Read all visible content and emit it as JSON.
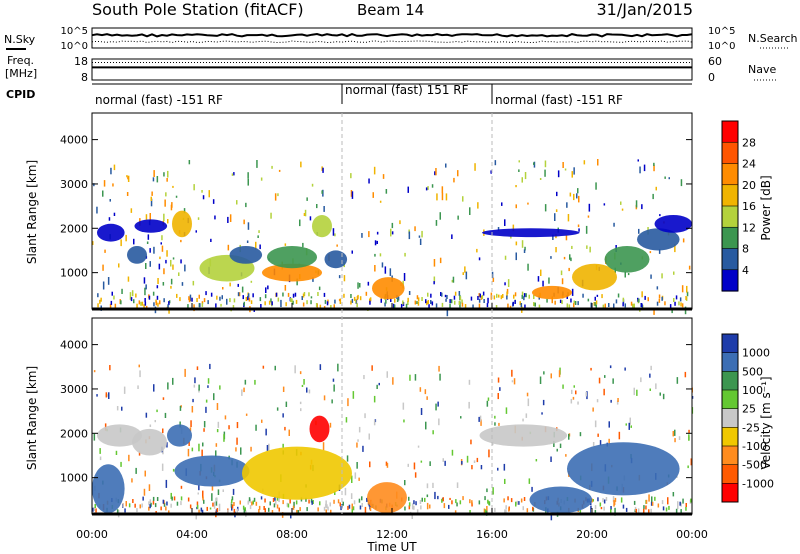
{
  "header": {
    "station": "South Pole Station (fitACF)",
    "beam": "Beam 14",
    "date": "31/Jan/2015"
  },
  "noise_panel": {
    "left_label": "N.Sky",
    "right_label": "N.Search",
    "left_ticks": [
      "10^5",
      "10^0"
    ],
    "right_ticks": [
      "10^5",
      "10^0"
    ]
  },
  "freq_panel": {
    "label_line1": "Freq.",
    "label_line2": "[MHz]",
    "left_ticks": [
      "18",
      "8"
    ],
    "right_ticks": [
      "60",
      "0"
    ],
    "right_label": "Nave",
    "freq_mhz": 14,
    "nave": 50
  },
  "cpid": {
    "label": "CPID",
    "segments": [
      {
        "text": "normal (fast) -151 RF",
        "start_hour": 0,
        "end_hour": 10
      },
      {
        "text": "normal (fast) 151 RF",
        "start_hour": 10,
        "end_hour": 16
      },
      {
        "text": "normal (fast) -151 RF",
        "start_hour": 16,
        "end_hour": 24
      }
    ]
  },
  "x_axis": {
    "title": "Time UT",
    "range": [
      0,
      24
    ],
    "ticks": [
      {
        "hour": 0,
        "label": "00:00"
      },
      {
        "hour": 4,
        "label": "04:00"
      },
      {
        "hour": 8,
        "label": "08:00"
      },
      {
        "hour": 12,
        "label": "12:00"
      },
      {
        "hour": 16,
        "label": "16:00"
      },
      {
        "hour": 20,
        "label": "20:00"
      },
      {
        "hour": 24,
        "label": "00:00"
      }
    ]
  },
  "power_panel": {
    "ylabel": "Slant Range [km]",
    "ylim": [
      180,
      4600
    ],
    "yticks": [
      "1000",
      "2000",
      "3000",
      "4000"
    ],
    "colorbar_title": "Power [dB]",
    "colorbar_labels": [
      "28",
      "24",
      "20",
      "16",
      "12",
      "8",
      "4"
    ],
    "colorbar_colors": [
      "#ff0000",
      "#ff5500",
      "#ff8c00",
      "#f0b400",
      "#b4d23c",
      "#3c9650",
      "#285aa0",
      "#0000c8"
    ]
  },
  "velocity_panel": {
    "ylabel": "Slant Range [km]",
    "ylim": [
      180,
      4600
    ],
    "yticks": [
      "1000",
      "2000",
      "3000",
      "4000"
    ],
    "colorbar_title": "Velocity [m s⁻¹]",
    "colorbar_labels": [
      "1000",
      "500",
      "100",
      "25",
      "-25",
      "-100",
      "-500",
      "-1000"
    ],
    "colorbar_colors": [
      "#1e3caa",
      "#3c6eb4",
      "#3c9650",
      "#64c832",
      "#c8c8c8",
      "#f0c800",
      "#ff8c1e",
      "#ff5a00",
      "#ff0000"
    ]
  },
  "chart_data": {
    "type": "heatmap",
    "title": "South Pole Station (fitACF)",
    "xlabel": "Time UT",
    "ylabel": "Slant Range [km]",
    "xlim": [
      0,
      24
    ],
    "ylim": [
      180,
      4600
    ],
    "power_features": [
      {
        "t0": 1.4,
        "t1": 2.2,
        "r0": 1200,
        "r1": 1600,
        "level": 1
      },
      {
        "t0": 0.2,
        "t1": 1.3,
        "r0": 1700,
        "r1": 2100,
        "level": 0
      },
      {
        "t0": 1.7,
        "t1": 3.0,
        "r0": 1900,
        "r1": 2200,
        "level": 0
      },
      {
        "t0": 3.2,
        "t1": 4.0,
        "r0": 1800,
        "r1": 2400,
        "level": 4
      },
      {
        "t0": 4.3,
        "t1": 6.5,
        "r0": 800,
        "r1": 1400,
        "level": 3
      },
      {
        "t0": 6.8,
        "t1": 9.2,
        "r0": 800,
        "r1": 1200,
        "level": 5
      },
      {
        "t0": 7.0,
        "t1": 9.0,
        "r0": 1100,
        "r1": 1600,
        "level": 2
      },
      {
        "t0": 5.5,
        "t1": 6.8,
        "r0": 1200,
        "r1": 1600,
        "level": 1
      },
      {
        "t0": 8.8,
        "t1": 9.6,
        "r0": 1800,
        "r1": 2300,
        "level": 3
      },
      {
        "t0": 9.3,
        "t1": 10.2,
        "r0": 1100,
        "r1": 1500,
        "level": 1
      },
      {
        "t0": 11.2,
        "t1": 12.5,
        "r0": 400,
        "r1": 900,
        "level": 5
      },
      {
        "t0": 17.6,
        "t1": 19.2,
        "r0": 400,
        "r1": 700,
        "level": 5
      },
      {
        "t0": 19.2,
        "t1": 21.0,
        "r0": 600,
        "r1": 1200,
        "level": 4
      },
      {
        "t0": 20.5,
        "t1": 22.3,
        "r0": 1000,
        "r1": 1600,
        "level": 2
      },
      {
        "t0": 21.8,
        "t1": 23.5,
        "r0": 1500,
        "r1": 2000,
        "level": 1
      },
      {
        "t0": 15.6,
        "t1": 19.5,
        "r0": 1800,
        "r1": 2000,
        "level": 0
      },
      {
        "t0": 22.5,
        "t1": 24.0,
        "r0": 1900,
        "r1": 2300,
        "level": 0
      }
    ],
    "velocity_features": [
      {
        "t0": 0.0,
        "t1": 1.3,
        "r0": 200,
        "r1": 1300,
        "level": 7
      },
      {
        "t0": 0.2,
        "t1": 2.0,
        "r0": 1700,
        "r1": 2200,
        "level": 4
      },
      {
        "t0": 1.6,
        "t1": 3.0,
        "r0": 1500,
        "r1": 2100,
        "level": 4
      },
      {
        "t0": 3.0,
        "t1": 4.0,
        "r0": 1700,
        "r1": 2200,
        "level": 7
      },
      {
        "t0": 3.3,
        "t1": 6.3,
        "r0": 800,
        "r1": 1500,
        "level": 7
      },
      {
        "t0": 6.0,
        "t1": 10.4,
        "r0": 500,
        "r1": 1700,
        "level": 3
      },
      {
        "t0": 8.7,
        "t1": 9.5,
        "r0": 1800,
        "r1": 2400,
        "level": 0
      },
      {
        "t0": 11.0,
        "t1": 12.6,
        "r0": 200,
        "r1": 900,
        "level": 2
      },
      {
        "t0": 17.5,
        "t1": 20.0,
        "r0": 200,
        "r1": 800,
        "level": 7
      },
      {
        "t0": 19.0,
        "t1": 23.5,
        "r0": 600,
        "r1": 1800,
        "level": 7
      },
      {
        "t0": 15.5,
        "t1": 19.0,
        "r0": 1700,
        "r1": 2200,
        "level": 4
      }
    ]
  }
}
